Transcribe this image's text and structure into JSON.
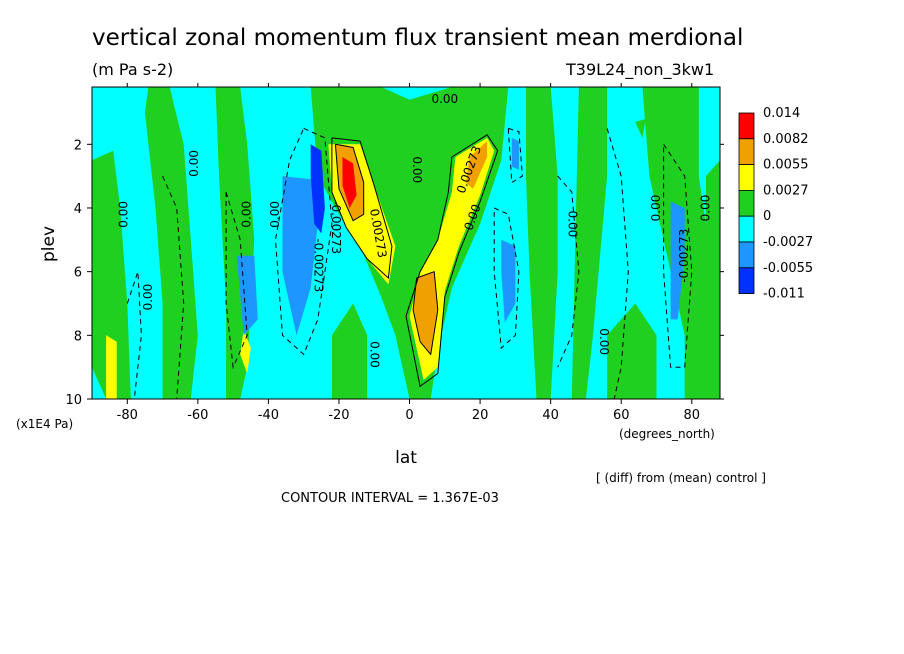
{
  "chart_data": {
    "type": "heatmap",
    "title": "vertical zonal momentum flux transient mean merdional",
    "units": "(m Pa s-2)",
    "run_label": "T39L24_non_3kw1",
    "xlabel": "lat",
    "xunits": "(degrees_north)",
    "ylabel": "plev",
    "yunits": "(x1E4 Pa)",
    "xlim": [
      -90,
      88
    ],
    "ylim": [
      10,
      0.2
    ],
    "x_ticks": [
      "-80",
      "-60",
      "-40",
      "-20",
      "0",
      "20",
      "40",
      "60",
      "80"
    ],
    "y_ticks": [
      "2",
      "4",
      "6",
      "8",
      "10"
    ],
    "colorbar": {
      "labels": [
        "0.014",
        "0.0082",
        "0.0055",
        "0.0027",
        "0",
        "-0.0027",
        "-0.0055",
        "-0.011"
      ],
      "colors": [
        "#ff0000",
        "#f0a000",
        "#ffff00",
        "#20d020",
        "#00ffff",
        "#1e96ff",
        "#0032ff"
      ]
    },
    "contour_labels": [
      "0.00",
      "0.00",
      "0.00",
      "0.00",
      "0.00",
      "0.00",
      "0.00",
      "0.00",
      "0.00",
      "0.00",
      "0.00",
      "0.00",
      "0.00",
      "-0.00273",
      "-0.00273",
      "-0.00273",
      "0.00273",
      "0.00273"
    ],
    "features": [
      {
        "lat": -17,
        "plev": 3.0,
        "value": 0.014
      },
      {
        "lat": 5,
        "plev": 7.2,
        "value": 0.0082
      },
      {
        "lat": 20,
        "plev": 2.6,
        "value": 0.0055
      },
      {
        "lat": -27,
        "plev": 4.0,
        "value": -0.0055
      },
      {
        "lat": -45,
        "plev": 6.8,
        "value": -0.0055
      },
      {
        "lat": 27,
        "plev": 6.5,
        "value": -0.0055
      },
      {
        "lat": -84,
        "plev": 8.6,
        "value": 0.0027
      },
      {
        "lat": -47,
        "plev": 8.6,
        "value": 0.0027
      }
    ],
    "footer": "[ (diff) from (mean) control ]",
    "contour_interval": "CONTOUR INTERVAL = 1.367E-03"
  }
}
